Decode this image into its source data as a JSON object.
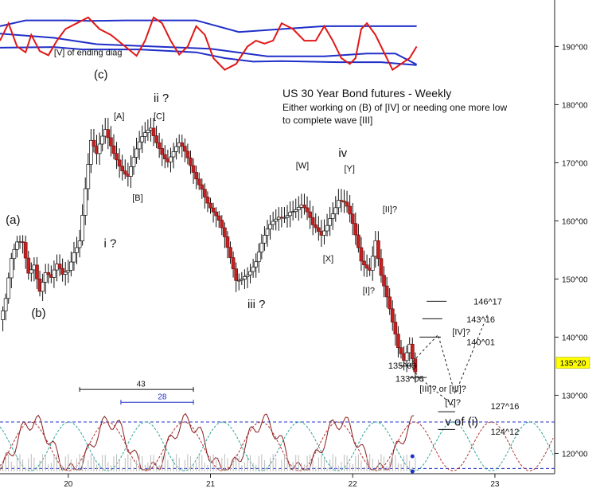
{
  "chart_data": {
    "type": "candlestick",
    "title": "US 30 Year Bond futures - Weekly",
    "subtitle_lines": [
      "Either working on (B) of [IV] or needing one more low",
      "to complete wave [III]"
    ],
    "y_ticks": [
      "190^00",
      "180^00",
      "170^00",
      "160^00",
      "150^00",
      "140^00",
      "130^00",
      "120^00"
    ],
    "y_tick_values": [
      190,
      180,
      170,
      160,
      150,
      140,
      130,
      120
    ],
    "ylim": [
      116.5,
      198
    ],
    "x_ticks": [
      "20",
      "21",
      "22",
      "23"
    ],
    "x_tick_values": [
      20,
      21,
      22,
      23
    ],
    "xlim": [
      19.52,
      23.42
    ],
    "last_price_label": "135^20",
    "last_price": 135.6,
    "price_path": [
      [
        19.52,
        143
      ],
      [
        19.56,
        146
      ],
      [
        19.6,
        152
      ],
      [
        19.64,
        155
      ],
      [
        19.68,
        156
      ],
      [
        19.72,
        152
      ],
      [
        19.76,
        154
      ],
      [
        19.8,
        149
      ],
      [
        19.84,
        151
      ],
      [
        19.88,
        149
      ],
      [
        19.92,
        151
      ],
      [
        19.96,
        150
      ],
      [
        20.0,
        152
      ],
      [
        20.04,
        156
      ],
      [
        20.08,
        158
      ],
      [
        20.12,
        166
      ],
      [
        20.16,
        173
      ],
      [
        20.2,
        170
      ],
      [
        20.26,
        175
      ],
      [
        20.34,
        172
      ],
      [
        20.42,
        168
      ],
      [
        20.5,
        172
      ],
      [
        20.58,
        176
      ],
      [
        20.64,
        174
      ],
      [
        20.7,
        171
      ],
      [
        20.78,
        172
      ],
      [
        20.86,
        169
      ],
      [
        20.94,
        167
      ],
      [
        21.0,
        163
      ],
      [
        21.06,
        159
      ],
      [
        21.12,
        154
      ],
      [
        21.18,
        150
      ],
      [
        21.24,
        152
      ],
      [
        21.32,
        153
      ],
      [
        21.4,
        157
      ],
      [
        21.48,
        161
      ],
      [
        21.56,
        163
      ],
      [
        21.64,
        162
      ],
      [
        21.72,
        158
      ],
      [
        21.78,
        158
      ],
      [
        21.84,
        162
      ],
      [
        21.9,
        164
      ],
      [
        21.95,
        162
      ],
      [
        22.0,
        158
      ],
      [
        22.06,
        153
      ],
      [
        22.12,
        153
      ],
      [
        22.16,
        158
      ],
      [
        22.2,
        151
      ],
      [
        22.24,
        146
      ],
      [
        22.28,
        141
      ],
      [
        22.32,
        137
      ],
      [
        22.36,
        136
      ],
      [
        22.4,
        140
      ],
      [
        22.44,
        135.6
      ]
    ],
    "annotations": [
      {
        "text": "[V]  of ending diag",
        "x": 19.9,
        "y": 188.5
      },
      {
        "text": "(c)",
        "x": 20.18,
        "y": 184.5
      },
      {
        "text": "ii ?",
        "x": 20.6,
        "y": 180.5
      },
      {
        "text": "[A]",
        "x": 20.32,
        "y": 177.5
      },
      {
        "text": "[C]",
        "x": 20.6,
        "y": 177.5
      },
      {
        "text": "[B]",
        "x": 20.45,
        "y": 163.5
      },
      {
        "text": "(a)",
        "x": 19.56,
        "y": 159.5
      },
      {
        "text": "i ?",
        "x": 20.25,
        "y": 155.5
      },
      {
        "text": "(b)",
        "x": 19.74,
        "y": 143.5
      },
      {
        "text": "iii ?",
        "x": 21.26,
        "y": 145
      },
      {
        "text": "[W]",
        "x": 21.6,
        "y": 169
      },
      {
        "text": "iv",
        "x": 21.9,
        "y": 171
      },
      {
        "text": "[Y]",
        "x": 21.94,
        "y": 168.5
      },
      {
        "text": "[X]",
        "x": 21.79,
        "y": 153
      },
      {
        "text": "[II]?",
        "x": 22.21,
        "y": 161.5
      },
      {
        "text": "[I]?",
        "x": 22.07,
        "y": 147.5
      },
      {
        "text": "135^03",
        "x": 22.25,
        "y": 134.6
      },
      {
        "text": "133^06",
        "x": 22.3,
        "y": 132.3
      },
      {
        "text": "[III]? or [III]?",
        "x": 22.47,
        "y": 130.6
      },
      {
        "text": "146^17",
        "x": 22.85,
        "y": 145.6
      },
      {
        "text": "143^16",
        "x": 22.8,
        "y": 142.5
      },
      {
        "text": "[IV]?",
        "x": 22.7,
        "y": 140.4
      },
      {
        "text": "140^01",
        "x": 22.8,
        "y": 138.6
      },
      {
        "text": "[V]?",
        "x": 22.65,
        "y": 128.3
      },
      {
        "text": "127^16",
        "x": 22.97,
        "y": 127.6
      },
      {
        "text": "v of (i)",
        "x": 22.65,
        "y": 124.8
      },
      {
        "text": "124^12",
        "x": 22.97,
        "y": 123.2
      },
      {
        "text": "43",
        "x": 20.48,
        "y": 131.5
      },
      {
        "text": "28",
        "x": 20.63,
        "y": 129.3
      }
    ],
    "levels": [
      {
        "label": "146^17",
        "value": 146.17
      },
      {
        "label": "143^16",
        "value": 143.16
      },
      {
        "label": "140^01",
        "value": 140.01
      },
      {
        "label": "135^03",
        "value": 135.03
      },
      {
        "label": "133^06",
        "value": 133.06
      },
      {
        "label": "127^16",
        "value": 127.16
      },
      {
        "label": "124^12",
        "value": 124.12
      }
    ],
    "cycle_spans": [
      {
        "label": "43",
        "x_start": 20.08,
        "x_end": 20.88,
        "color": "#111111"
      },
      {
        "label": "28",
        "x_start": 20.37,
        "x_end": 20.88,
        "color": "#1f2fc8"
      }
    ],
    "projection_paths": [
      [
        [
          22.4,
          135.2
        ],
        [
          22.6,
          140.4
        ],
        [
          22.72,
          130.2
        ],
        [
          22.95,
          144
        ]
      ],
      [
        [
          22.4,
          135.2
        ],
        [
          22.47,
          133
        ],
        [
          22.72,
          128
        ]
      ]
    ],
    "top_indicator": {
      "band_upper": [
        [
          19.52,
          193.5
        ],
        [
          19.7,
          194.5
        ],
        [
          20.0,
          194.5
        ],
        [
          20.15,
          194.4
        ],
        [
          20.4,
          194.5
        ],
        [
          20.9,
          194.5
        ],
        [
          21.2,
          192.5
        ],
        [
          21.5,
          193
        ],
        [
          21.8,
          193.5
        ],
        [
          22.2,
          193.5
        ],
        [
          22.45,
          193.5
        ]
      ],
      "band_lower": [
        [
          19.52,
          189.8
        ],
        [
          19.9,
          189.9
        ],
        [
          20.1,
          189.5
        ],
        [
          20.5,
          189.5
        ],
        [
          20.9,
          189
        ],
        [
          21.1,
          188
        ],
        [
          21.3,
          187.4
        ],
        [
          21.5,
          187.5
        ],
        [
          21.9,
          187.3
        ],
        [
          22.2,
          187.3
        ],
        [
          22.45,
          186.8
        ]
      ],
      "mid": [
        [
          19.52,
          192.2
        ],
        [
          19.9,
          191.5
        ],
        [
          20.2,
          190.4
        ],
        [
          20.6,
          190
        ],
        [
          21.0,
          189.6
        ],
        [
          21.4,
          188.3
        ],
        [
          21.8,
          188.3
        ],
        [
          22.1,
          188.8
        ],
        [
          22.3,
          188.8
        ],
        [
          22.45,
          186.9
        ]
      ],
      "oscillator": [
        [
          19.52,
          191
        ],
        [
          19.58,
          194
        ],
        [
          19.64,
          190
        ],
        [
          19.7,
          189
        ],
        [
          19.74,
          192
        ],
        [
          19.8,
          189.2
        ],
        [
          19.86,
          188.5
        ],
        [
          19.92,
          191
        ],
        [
          19.98,
          193
        ],
        [
          20.06,
          194
        ],
        [
          20.14,
          195
        ],
        [
          20.22,
          193
        ],
        [
          20.3,
          192
        ],
        [
          20.4,
          190
        ],
        [
          20.48,
          188.4
        ],
        [
          20.54,
          191
        ],
        [
          20.6,
          195
        ],
        [
          20.66,
          194
        ],
        [
          20.72,
          191
        ],
        [
          20.78,
          188.6
        ],
        [
          20.84,
          190
        ],
        [
          20.9,
          193.5
        ],
        [
          20.96,
          192
        ],
        [
          21.02,
          188
        ],
        [
          21.1,
          186
        ],
        [
          21.18,
          187
        ],
        [
          21.26,
          190
        ],
        [
          21.32,
          191
        ],
        [
          21.38,
          190.5
        ],
        [
          21.44,
          191
        ],
        [
          21.5,
          194
        ],
        [
          21.58,
          193
        ],
        [
          21.66,
          191
        ],
        [
          21.74,
          191
        ],
        [
          21.8,
          193.5
        ],
        [
          21.86,
          191
        ],
        [
          21.92,
          188
        ],
        [
          21.98,
          187
        ],
        [
          22.02,
          188
        ],
        [
          22.06,
          193
        ],
        [
          22.1,
          194
        ],
        [
          22.16,
          192
        ],
        [
          22.22,
          189
        ],
        [
          22.28,
          186
        ],
        [
          22.34,
          187
        ],
        [
          22.4,
          188
        ],
        [
          22.45,
          190
        ]
      ]
    },
    "bottom_indicator": {
      "levels": [
        125.4,
        117.4
      ],
      "cycle_a_color": "#b22c2c",
      "cycle_b_color": "#2aa39a",
      "line_color": "#8a1f1f"
    }
  }
}
